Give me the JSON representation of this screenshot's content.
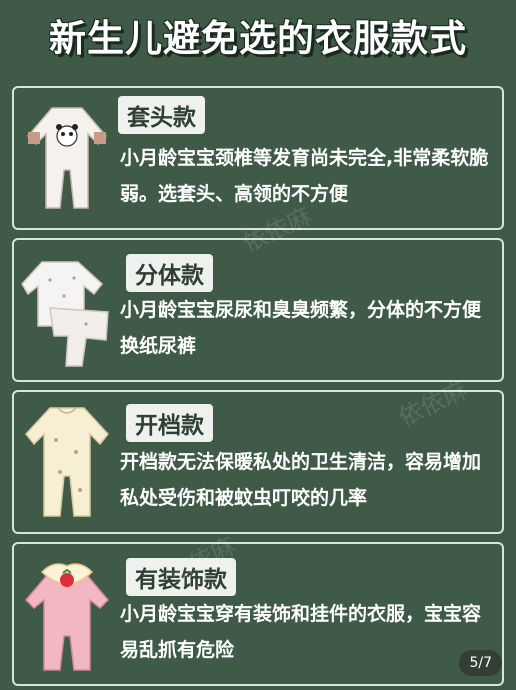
{
  "title": "新生儿避免选的衣服款式",
  "items": [
    {
      "label": "套头款",
      "desc": "小月龄宝宝颈椎等发育尚未完全,非常柔软脆弱。选套头、高领的不方便"
    },
    {
      "label": "分体款",
      "desc": "小月龄宝宝尿尿和臭臭频繁，分体的不方便换纸尿裤"
    },
    {
      "label": "开档款",
      "desc": "开档款无法保暖私处的卫生清洁，容易增加私处受伤和被蚊虫叮咬的几率"
    },
    {
      "label": "有装饰款",
      "desc": "小月龄宝宝穿有装饰和挂件的衣服，宝宝容易乱抓有危险"
    }
  ],
  "watermark": "依依麻",
  "pager": "5/7"
}
